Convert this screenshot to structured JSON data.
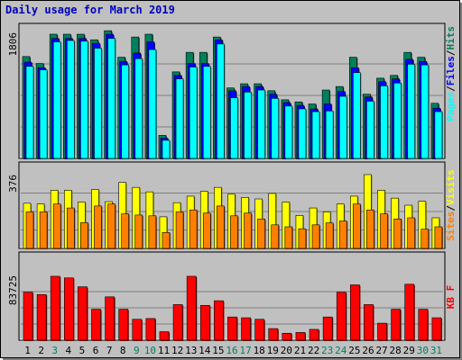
{
  "title": "Daily usage for March 2019",
  "colors": {
    "hits": "#00805c",
    "files": "#0000ff",
    "pages": "#00ffff",
    "visits": "#ffff00",
    "sites": "#ff8000",
    "kbytes": "#ff0000",
    "panel_bg": "#c0c0c0",
    "weekend_day": "#00805c",
    "weekday": "#000000"
  },
  "chart_data": [
    {
      "type": "bar",
      "panel": "hits-files-pages",
      "ylabel_max": "1806",
      "ylim": [
        0,
        1806
      ],
      "legend": [
        "Pages",
        "Files",
        "Hits"
      ],
      "categories": [
        "1",
        "2",
        "3",
        "4",
        "5",
        "6",
        "7",
        "8",
        "9",
        "10",
        "11",
        "12",
        "13",
        "14",
        "15",
        "16",
        "17",
        "18",
        "19",
        "20",
        "21",
        "22",
        "23",
        "24",
        "25",
        "26",
        "27",
        "28",
        "29",
        "30",
        "31"
      ],
      "series": [
        {
          "name": "Hits",
          "values": [
            1460,
            1360,
            1780,
            1780,
            1780,
            1700,
            1830,
            1450,
            1740,
            1780,
            330,
            1240,
            1520,
            1520,
            1740,
            1010,
            1070,
            1070,
            970,
            840,
            810,
            780,
            980,
            1030,
            1450,
            920,
            1150,
            1190,
            1520,
            1450,
            790
          ]
        },
        {
          "name": "Files",
          "values": [
            1380,
            1300,
            1720,
            1720,
            1720,
            1650,
            1780,
            1390,
            1510,
            1670,
            290,
            1190,
            1360,
            1360,
            1700,
            970,
            1030,
            1030,
            920,
            800,
            760,
            710,
            780,
            960,
            1300,
            880,
            1100,
            1140,
            1420,
            1390,
            720
          ]
        },
        {
          "name": "Pages",
          "values": [
            1320,
            1270,
            1670,
            1690,
            1680,
            1580,
            1720,
            1340,
            1430,
            1560,
            260,
            1140,
            1310,
            1320,
            1640,
            870,
            950,
            980,
            860,
            750,
            710,
            670,
            680,
            890,
            1230,
            820,
            1040,
            1080,
            1350,
            1340,
            670
          ]
        }
      ]
    },
    {
      "type": "bar",
      "panel": "visits-sites",
      "ylabel_max": "376",
      "ylim": [
        0,
        376
      ],
      "legend": [
        "Sites",
        "Visits"
      ],
      "categories": [
        "1",
        "2",
        "3",
        "4",
        "5",
        "6",
        "7",
        "8",
        "9",
        "10",
        "11",
        "12",
        "13",
        "14",
        "15",
        "16",
        "17",
        "18",
        "19",
        "20",
        "21",
        "22",
        "23",
        "24",
        "25",
        "26",
        "27",
        "28",
        "29",
        "30",
        "31"
      ],
      "series": [
        {
          "name": "Visits",
          "values": [
            230,
            226,
            296,
            296,
            236,
            300,
            238,
            336,
            311,
            288,
            161,
            233,
            266,
            291,
            311,
            276,
            260,
            252,
            280,
            236,
            168,
            206,
            186,
            226,
            266,
            376,
            296,
            256,
            220,
            240,
            156
          ]
        },
        {
          "name": "Sites",
          "values": [
            186,
            186,
            226,
            206,
            131,
            216,
            226,
            176,
            170,
            166,
            81,
            186,
            196,
            180,
            216,
            166,
            180,
            150,
            120,
            110,
            100,
            120,
            130,
            140,
            226,
            196,
            176,
            150,
            156,
            98,
            110
          ]
        }
      ]
    },
    {
      "type": "bar",
      "panel": "kbytes",
      "ylabel_max": "83725",
      "ylim": [
        0,
        83725
      ],
      "legend": [
        "KB F"
      ],
      "categories": [
        "1",
        "2",
        "3",
        "4",
        "5",
        "6",
        "7",
        "8",
        "9",
        "10",
        "11",
        "12",
        "13",
        "14",
        "15",
        "16",
        "17",
        "18",
        "19",
        "20",
        "21",
        "22",
        "23",
        "24",
        "25",
        "26",
        "27",
        "28",
        "29",
        "30",
        "31"
      ],
      "series": [
        {
          "name": "KB F",
          "values": [
            62000,
            59000,
            82600,
            80500,
            69000,
            40000,
            56000,
            40000,
            27000,
            28000,
            11000,
            46000,
            82600,
            45000,
            51000,
            30000,
            29000,
            27000,
            15000,
            9000,
            10000,
            14000,
            30000,
            62000,
            71500,
            46000,
            22000,
            40000,
            72300,
            40000,
            29000
          ]
        }
      ]
    }
  ],
  "weekend_days": [
    "3",
    "9",
    "10",
    "16",
    "17",
    "23",
    "24",
    "30",
    "31"
  ]
}
